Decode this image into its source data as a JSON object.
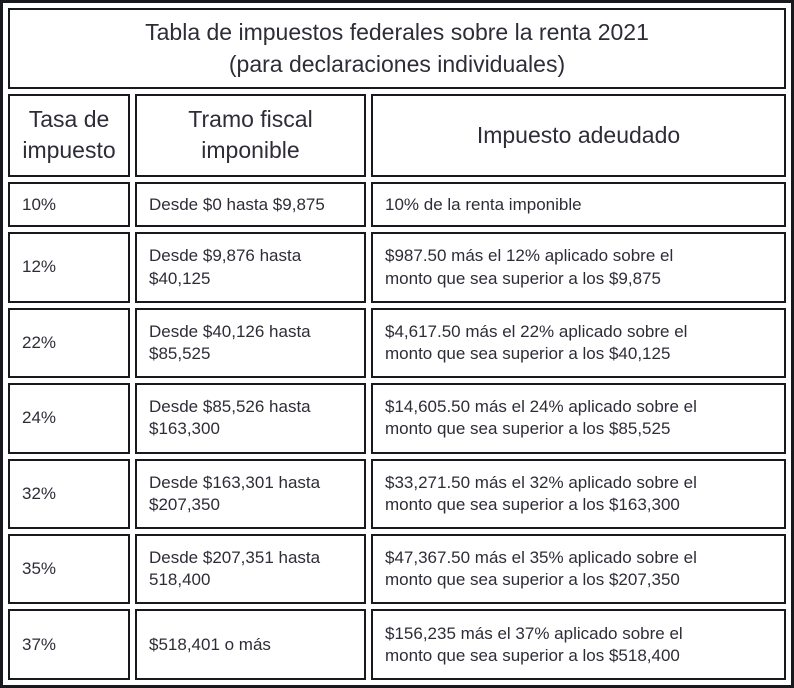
{
  "colors": {
    "border": "#18181f",
    "text": "#2d2d38",
    "background": "#ffffff"
  },
  "table": {
    "title": "Tabla de impuestos federales sobre la renta 2021\n(para declaraciones individuales)",
    "columns": [
      "Tasa de\nimpuesto",
      "Tramo fiscal\nimponible",
      "Impuesto adeudado"
    ],
    "rows": [
      {
        "rate": "10%",
        "bracket": "Desde $0 hasta $9,875",
        "tax_owed": "10% de la renta imponible"
      },
      {
        "rate": "12%",
        "bracket": "Desde $9,876 hasta\n$40,125",
        "tax_owed": "$987.50 más el 12% aplicado sobre el\nmonto que sea superior a los $9,875"
      },
      {
        "rate": "22%",
        "bracket": "Desde $40,126 hasta\n$85,525",
        "tax_owed": "$4,617.50 más el 22% aplicado sobre el\nmonto que sea superior a los $40,125"
      },
      {
        "rate": "24%",
        "bracket": "Desde $85,526 hasta\n$163,300",
        "tax_owed": "$14,605.50 más el 24% aplicado sobre el\nmonto que sea superior a los $85,525"
      },
      {
        "rate": "32%",
        "bracket": "Desde $163,301 hasta\n$207,350",
        "tax_owed": "$33,271.50 más el 32% aplicado sobre el\nmonto que sea superior a los $163,300"
      },
      {
        "rate": "35%",
        "bracket": "Desde $207,351 hasta\n518,400",
        "tax_owed": "$47,367.50 más el 35% aplicado sobre el\nmonto que sea superior a los $207,350"
      },
      {
        "rate": "37%",
        "bracket": "$518,401 o más",
        "tax_owed": "$156,235 más el 37% aplicado sobre el\nmonto que sea superior a los $518,400"
      }
    ]
  }
}
